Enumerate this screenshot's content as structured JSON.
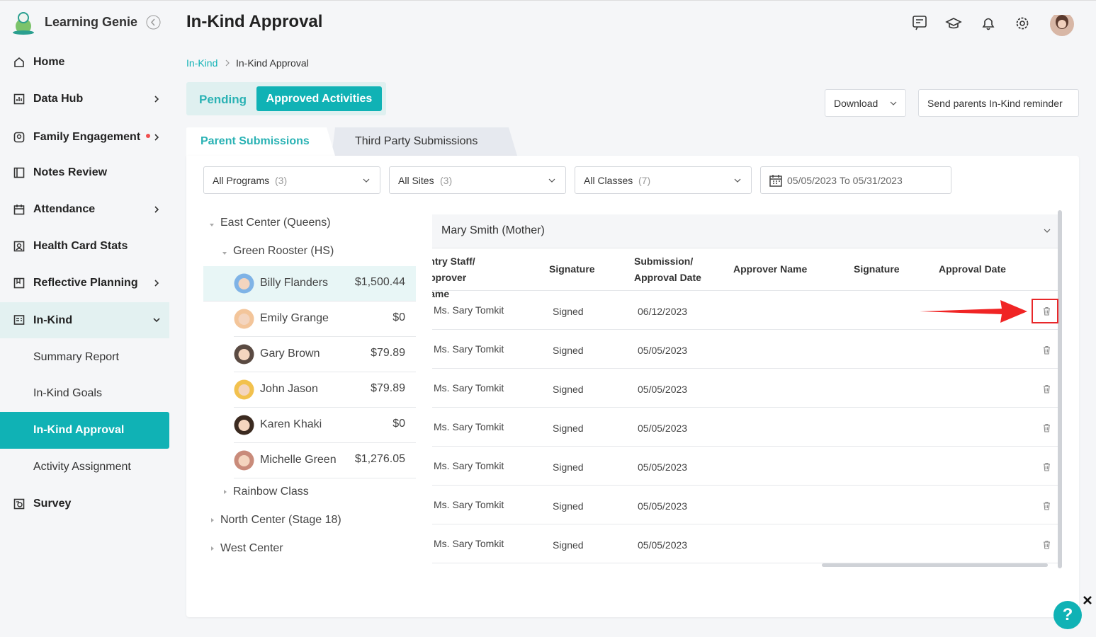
{
  "sidebar": {
    "brand": "Learning Genie",
    "items": [
      "Home",
      "Data Hub",
      "Family Engagement",
      "Notes Review",
      "Attendance",
      "Health Card Stats",
      "Reflective Planning",
      "In-Kind",
      "Survey"
    ],
    "subitems": [
      "Summary Report",
      "In-Kind Goals",
      "In-Kind Approval",
      "Activity Assignment"
    ]
  },
  "header": {
    "title": "In-Kind Approval"
  },
  "breadcrumb": [
    "In-Kind",
    "In-Kind Approval"
  ],
  "status_tabs": [
    "Pending",
    "Approved Activities"
  ],
  "buttons": {
    "download": "Download",
    "reminder": "Send parents In-Kind reminder"
  },
  "submission_tabs": [
    "Parent Submissions",
    "Third Party Submissions"
  ],
  "filters": [
    {
      "label": "All Programs",
      "count": "(3)"
    },
    {
      "label": "All Sites",
      "count": "(3)"
    },
    {
      "label": "All Classes",
      "count": "(7)"
    }
  ],
  "date_range": {
    "from": "05/05/2023",
    "separator": "To",
    "to": "05/31/2023"
  },
  "tree": {
    "center": "East Center (Queens)",
    "class": "Green Rooster (HS)",
    "children": [
      {
        "name": "Billy Flanders",
        "amount": "$1,500.44"
      },
      {
        "name": "Emily Grange",
        "amount": "$0"
      },
      {
        "name": "Gary Brown",
        "amount": "$79.89"
      },
      {
        "name": "John Jason",
        "amount": "$79.89"
      },
      {
        "name": "Karen Khaki",
        "amount": "$0"
      },
      {
        "name": "Michelle Green",
        "amount": "$1,276.05"
      }
    ],
    "other_class": "Rainbow Class",
    "other_centers": [
      "North Center (Stage 18)",
      "West Center"
    ]
  },
  "table": {
    "parent": "Mary Smith (Mother)",
    "columns": [
      "Entry Staff/ Approver Name",
      "Signature",
      "Submission/ Approval Date",
      "Approver Name",
      "Signature",
      "Approval Date"
    ],
    "rows": [
      [
        "Ms. Sary Tomkit",
        "Signed",
        "06/12/2023"
      ],
      [
        "Ms. Sary Tomkit",
        "Signed",
        "05/05/2023"
      ],
      [
        "Ms. Sary Tomkit",
        "Signed",
        "05/05/2023"
      ],
      [
        "Ms. Sary Tomkit",
        "Signed",
        "05/05/2023"
      ],
      [
        "Ms. Sary Tomkit",
        "Signed",
        "05/05/2023"
      ],
      [
        "Ms. Sary Tomkit",
        "Signed",
        "05/05/2023"
      ],
      [
        "Ms. Sary Tomkit",
        "Signed",
        "05/05/2023"
      ]
    ]
  },
  "help": "?"
}
